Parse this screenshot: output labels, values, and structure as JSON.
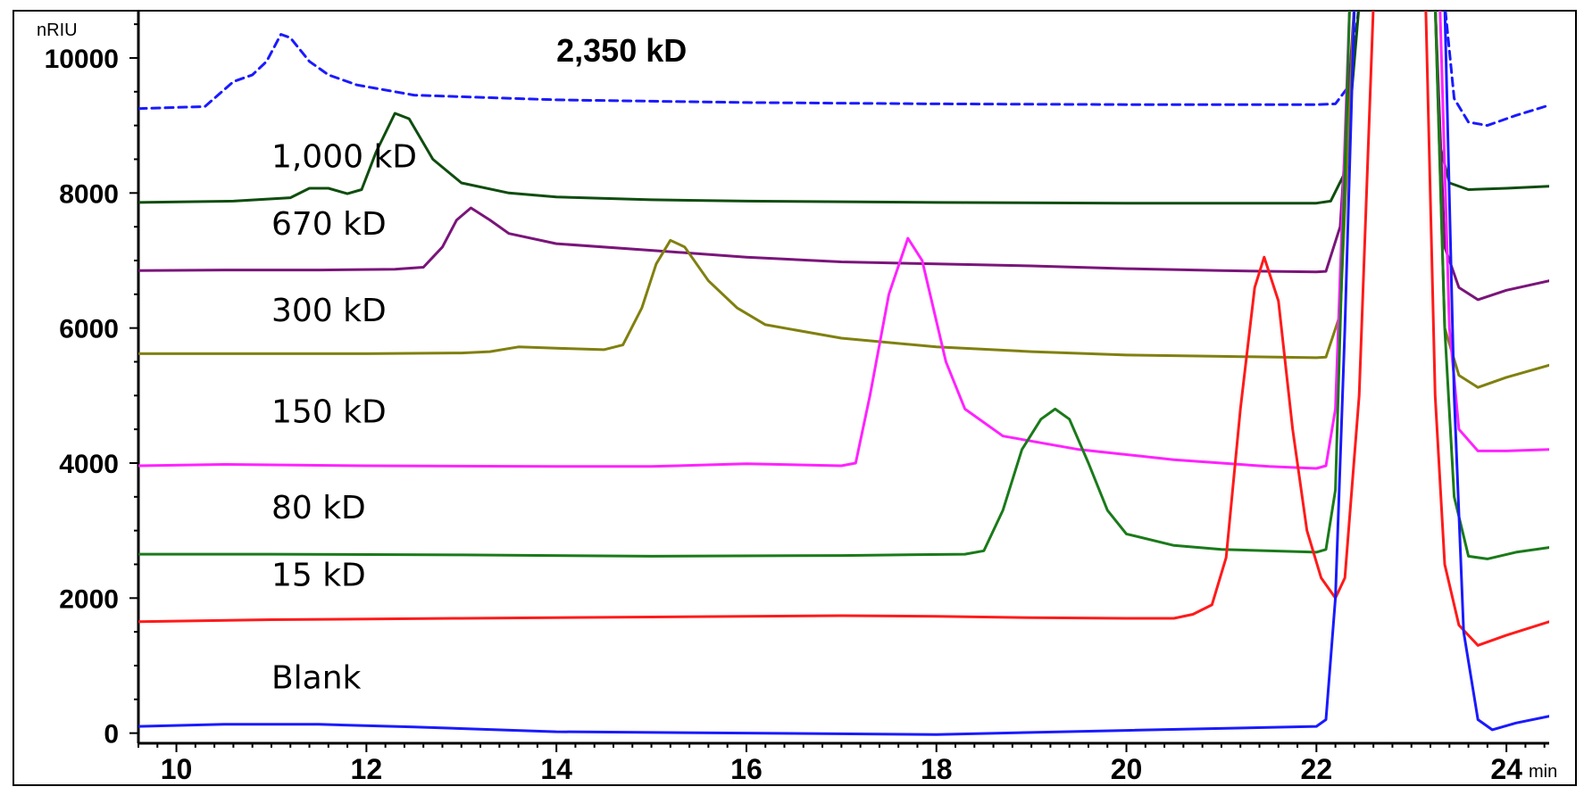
{
  "chart_data": {
    "type": "line",
    "ylabel": "nRIU",
    "xlabel": "min",
    "xlim": [
      9.6,
      24.45
    ],
    "ylim": [
      -150,
      10700
    ],
    "x_ticks": [
      10,
      12,
      14,
      16,
      18,
      20,
      22,
      24
    ],
    "y_ticks": [
      0,
      2000,
      4000,
      6000,
      8000,
      10000
    ],
    "x_tick_labels": [
      "10",
      "12",
      "14",
      "16",
      "18",
      "20",
      "22",
      "24"
    ],
    "y_tick_labels": [
      "0",
      "2000",
      "4000",
      "6000",
      "8000",
      "10000"
    ],
    "grid": false,
    "series": [
      {
        "name": "2,350 kD",
        "color": "#1a1aff",
        "dashed": true,
        "points": [
          [
            9.6,
            9250
          ],
          [
            10.3,
            9280
          ],
          [
            10.6,
            9650
          ],
          [
            10.8,
            9750
          ],
          [
            10.95,
            9950
          ],
          [
            11.1,
            10350
          ],
          [
            11.2,
            10300
          ],
          [
            11.4,
            9950
          ],
          [
            11.6,
            9750
          ],
          [
            11.9,
            9600
          ],
          [
            12.5,
            9450
          ],
          [
            14,
            9380
          ],
          [
            16,
            9340
          ],
          [
            18,
            9320
          ],
          [
            20,
            9310
          ],
          [
            22,
            9310
          ],
          [
            22.2,
            9320
          ],
          [
            22.35,
            9600
          ],
          [
            22.45,
            10800
          ],
          [
            23.35,
            10800
          ],
          [
            23.45,
            9400
          ],
          [
            23.6,
            9050
          ],
          [
            23.8,
            9000
          ],
          [
            24.1,
            9150
          ],
          [
            24.45,
            9300
          ]
        ]
      },
      {
        "name": "1,000 kD",
        "color": "#0f4d0f",
        "points": [
          [
            9.6,
            7860
          ],
          [
            10.6,
            7880
          ],
          [
            11.2,
            7930
          ],
          [
            11.4,
            8070
          ],
          [
            11.6,
            8070
          ],
          [
            11.8,
            7990
          ],
          [
            11.95,
            8050
          ],
          [
            12.1,
            8600
          ],
          [
            12.3,
            9180
          ],
          [
            12.45,
            9100
          ],
          [
            12.7,
            8500
          ],
          [
            13,
            8150
          ],
          [
            13.5,
            8000
          ],
          [
            14,
            7940
          ],
          [
            15,
            7900
          ],
          [
            16,
            7880
          ],
          [
            18,
            7860
          ],
          [
            20,
            7850
          ],
          [
            22,
            7850
          ],
          [
            22.15,
            7880
          ],
          [
            22.3,
            8300
          ],
          [
            22.45,
            10800
          ],
          [
            23.25,
            10800
          ],
          [
            23.3,
            8700
          ],
          [
            23.4,
            8150
          ],
          [
            23.6,
            8050
          ],
          [
            24,
            8070
          ],
          [
            24.45,
            8100
          ]
        ]
      },
      {
        "name": "670 kD",
        "color": "#7a157a",
        "points": [
          [
            9.6,
            6850
          ],
          [
            10.5,
            6860
          ],
          [
            11.5,
            6860
          ],
          [
            12.3,
            6870
          ],
          [
            12.6,
            6900
          ],
          [
            12.8,
            7200
          ],
          [
            12.95,
            7600
          ],
          [
            13.1,
            7780
          ],
          [
            13.3,
            7600
          ],
          [
            13.5,
            7400
          ],
          [
            14,
            7250
          ],
          [
            15,
            7150
          ],
          [
            16,
            7050
          ],
          [
            17,
            6980
          ],
          [
            18,
            6950
          ],
          [
            19,
            6920
          ],
          [
            20,
            6880
          ],
          [
            21,
            6850
          ],
          [
            22,
            6830
          ],
          [
            22.1,
            6840
          ],
          [
            22.25,
            7500
          ],
          [
            22.4,
            10800
          ],
          [
            23.25,
            10800
          ],
          [
            23.35,
            7200
          ],
          [
            23.5,
            6600
          ],
          [
            23.7,
            6420
          ],
          [
            24,
            6560
          ],
          [
            24.45,
            6700
          ]
        ]
      },
      {
        "name": "300 kD",
        "color": "#808010",
        "points": [
          [
            9.6,
            5620
          ],
          [
            10.5,
            5620
          ],
          [
            12,
            5620
          ],
          [
            13,
            5630
          ],
          [
            13.3,
            5650
          ],
          [
            13.6,
            5720
          ],
          [
            14,
            5700
          ],
          [
            14.5,
            5680
          ],
          [
            14.7,
            5750
          ],
          [
            14.9,
            6300
          ],
          [
            15.05,
            6950
          ],
          [
            15.2,
            7300
          ],
          [
            15.35,
            7200
          ],
          [
            15.6,
            6700
          ],
          [
            15.9,
            6300
          ],
          [
            16.2,
            6050
          ],
          [
            17,
            5850
          ],
          [
            18,
            5720
          ],
          [
            19,
            5650
          ],
          [
            20,
            5600
          ],
          [
            21,
            5580
          ],
          [
            22,
            5560
          ],
          [
            22.1,
            5570
          ],
          [
            22.25,
            6200
          ],
          [
            22.4,
            10800
          ],
          [
            23.25,
            10800
          ],
          [
            23.35,
            6000
          ],
          [
            23.5,
            5300
          ],
          [
            23.7,
            5120
          ],
          [
            24,
            5270
          ],
          [
            24.45,
            5450
          ]
        ]
      },
      {
        "name": "150 kD",
        "color": "#ff22ff",
        "points": [
          [
            9.6,
            3960
          ],
          [
            10.5,
            3980
          ],
          [
            12,
            3960
          ],
          [
            14,
            3950
          ],
          [
            15,
            3950
          ],
          [
            16,
            3990
          ],
          [
            17,
            3960
          ],
          [
            17.15,
            4000
          ],
          [
            17.3,
            5000
          ],
          [
            17.5,
            6500
          ],
          [
            17.7,
            7330
          ],
          [
            17.85,
            7000
          ],
          [
            18.1,
            5500
          ],
          [
            18.3,
            4800
          ],
          [
            18.7,
            4400
          ],
          [
            19.5,
            4200
          ],
          [
            20.5,
            4050
          ],
          [
            21.5,
            3950
          ],
          [
            22,
            3920
          ],
          [
            22.1,
            3960
          ],
          [
            22.2,
            4800
          ],
          [
            22.35,
            10800
          ],
          [
            23.3,
            10800
          ],
          [
            23.4,
            6000
          ],
          [
            23.5,
            4500
          ],
          [
            23.7,
            4180
          ],
          [
            24,
            4180
          ],
          [
            24.45,
            4200
          ]
        ]
      },
      {
        "name": "80 kD",
        "color": "#1a7a1a",
        "points": [
          [
            9.6,
            2650
          ],
          [
            11,
            2650
          ],
          [
            13,
            2640
          ],
          [
            15,
            2620
          ],
          [
            17,
            2630
          ],
          [
            18.3,
            2650
          ],
          [
            18.5,
            2700
          ],
          [
            18.7,
            3300
          ],
          [
            18.9,
            4200
          ],
          [
            19.1,
            4650
          ],
          [
            19.25,
            4800
          ],
          [
            19.4,
            4650
          ],
          [
            19.6,
            4000
          ],
          [
            19.8,
            3300
          ],
          [
            20,
            2950
          ],
          [
            20.5,
            2780
          ],
          [
            21,
            2720
          ],
          [
            22,
            2680
          ],
          [
            22.1,
            2720
          ],
          [
            22.2,
            3600
          ],
          [
            22.35,
            10800
          ],
          [
            23.25,
            10800
          ],
          [
            23.35,
            6000
          ],
          [
            23.45,
            3500
          ],
          [
            23.6,
            2620
          ],
          [
            23.8,
            2580
          ],
          [
            24.1,
            2680
          ],
          [
            24.45,
            2750
          ]
        ]
      },
      {
        "name": "15 kD",
        "color": "#ff1a1a",
        "points": [
          [
            9.6,
            1650
          ],
          [
            11,
            1680
          ],
          [
            13,
            1700
          ],
          [
            15,
            1720
          ],
          [
            17,
            1740
          ],
          [
            18,
            1730
          ],
          [
            19,
            1710
          ],
          [
            20,
            1700
          ],
          [
            20.5,
            1700
          ],
          [
            20.7,
            1760
          ],
          [
            20.9,
            1900
          ],
          [
            21.05,
            2600
          ],
          [
            21.2,
            4800
          ],
          [
            21.35,
            6600
          ],
          [
            21.45,
            7050
          ],
          [
            21.6,
            6400
          ],
          [
            21.75,
            4500
          ],
          [
            21.9,
            3000
          ],
          [
            22.05,
            2300
          ],
          [
            22.2,
            2000
          ],
          [
            22.3,
            2300
          ],
          [
            22.45,
            5000
          ],
          [
            22.6,
            10800
          ],
          [
            23.15,
            10800
          ],
          [
            23.25,
            5000
          ],
          [
            23.35,
            2500
          ],
          [
            23.5,
            1600
          ],
          [
            23.7,
            1300
          ],
          [
            24,
            1450
          ],
          [
            24.45,
            1650
          ]
        ]
      },
      {
        "name": "Blank",
        "color": "#1a1aff",
        "points": [
          [
            9.6,
            100
          ],
          [
            10.5,
            130
          ],
          [
            11.5,
            130
          ],
          [
            12.5,
            90
          ],
          [
            14,
            20
          ],
          [
            16,
            0
          ],
          [
            18,
            -20
          ],
          [
            20,
            40
          ],
          [
            22,
            100
          ],
          [
            22.1,
            200
          ],
          [
            22.2,
            2000
          ],
          [
            22.3,
            6000
          ],
          [
            22.4,
            10800
          ],
          [
            23.35,
            10800
          ],
          [
            23.45,
            5000
          ],
          [
            23.55,
            1500
          ],
          [
            23.7,
            200
          ],
          [
            23.85,
            50
          ],
          [
            24.1,
            150
          ],
          [
            24.45,
            250
          ]
        ]
      }
    ],
    "labels": [
      {
        "text": "2,350 kD",
        "x": 14.0,
        "y": 9950,
        "bold": true
      },
      {
        "text": "1,000 kD",
        "x": 11.0,
        "y": 8380,
        "bold": false
      },
      {
        "text": "670 kD",
        "x": 11.0,
        "y": 7380,
        "bold": false
      },
      {
        "text": "300 kD",
        "x": 11.0,
        "y": 6100,
        "bold": false
      },
      {
        "text": "150 kD",
        "x": 11.0,
        "y": 4600,
        "bold": false
      },
      {
        "text": "80 kD",
        "x": 11.0,
        "y": 3180,
        "bold": false
      },
      {
        "text": "15 kD",
        "x": 11.0,
        "y": 2180,
        "bold": false
      },
      {
        "text": "Blank",
        "x": 11.0,
        "y": 660,
        "bold": false
      }
    ]
  }
}
